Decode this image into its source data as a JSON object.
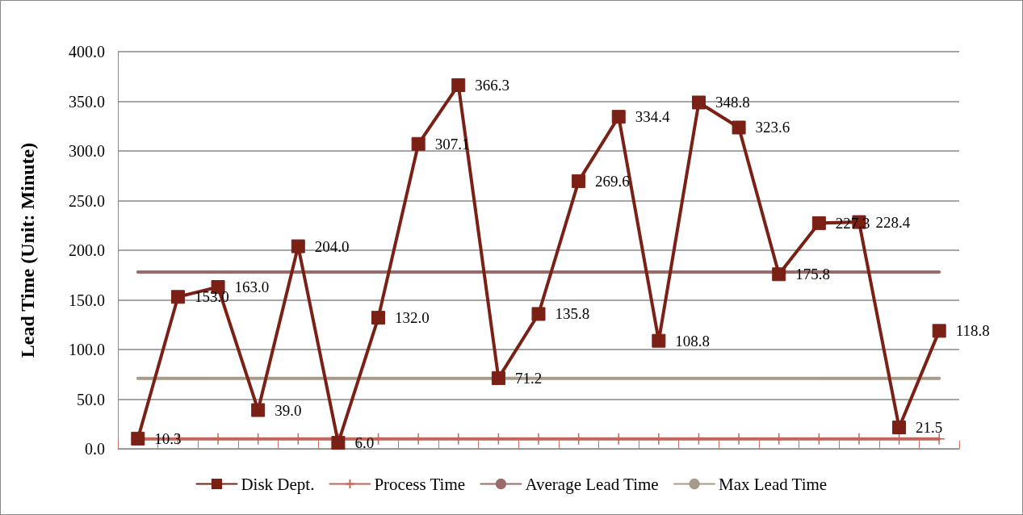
{
  "chart_data": {
    "type": "line",
    "ylabel": "Lead Time (Unit: Minute)",
    "categories": [
      null,
      null,
      null,
      null,
      null,
      null,
      null,
      null,
      null,
      null,
      null,
      null,
      null,
      null,
      null,
      null,
      null,
      null,
      null,
      null,
      null
    ],
    "series": [
      {
        "name": "Disk Dept.",
        "color": "#7b2015",
        "marker": "square",
        "values": [
          10.3,
          153.0,
          163.0,
          39.0,
          204.0,
          6.0,
          132.0,
          307.1,
          366.3,
          71.2,
          135.8,
          269.6,
          334.4,
          108.8,
          348.8,
          323.6,
          175.8,
          227.3,
          228.4,
          21.5,
          118.8
        ],
        "value_labels": [
          "10.3",
          "153.0",
          "163.0",
          "39.0",
          "204.0",
          "6.0",
          "132.0",
          "307.1",
          "366.3",
          "71.2",
          "135.8",
          "269.6",
          "334.4",
          "108.8",
          "348.8",
          "323.6",
          "175.8",
          "227.3",
          "228.4",
          "21.5",
          "118.8"
        ]
      },
      {
        "name": "Process Time",
        "color": "#c0675c",
        "marker": "cross",
        "values": [
          10,
          10,
          10,
          10,
          10,
          10,
          10,
          10,
          10,
          10,
          10,
          10,
          10,
          10,
          10,
          10,
          10,
          10,
          10,
          10,
          10
        ]
      },
      {
        "name": "Average Lead Time",
        "color": "#9b6b6b",
        "marker": "none",
        "values": [
          178,
          178,
          178,
          178,
          178,
          178,
          178,
          178,
          178,
          178,
          178,
          178,
          178,
          178,
          178,
          178,
          178,
          178,
          178,
          178,
          178
        ]
      },
      {
        "name": "Max Lead Time",
        "color": "#a69b88",
        "marker": "none",
        "values": [
          71,
          71,
          71,
          71,
          71,
          71,
          71,
          71,
          71,
          71,
          71,
          71,
          71,
          71,
          71,
          71,
          71,
          71,
          71,
          71,
          71
        ]
      }
    ],
    "ylim": [
      0,
      400
    ],
    "yticks": [
      {
        "value": 0,
        "label": "0.0"
      },
      {
        "value": 50,
        "label": "50.0"
      },
      {
        "value": 100,
        "label": "100.0"
      },
      {
        "value": 150,
        "label": "150.0"
      },
      {
        "value": 200,
        "label": "200.0"
      },
      {
        "value": 250,
        "label": "250.0"
      },
      {
        "value": 300,
        "label": "300.0"
      },
      {
        "value": 350,
        "label": "350.0"
      },
      {
        "value": 400,
        "label": "400.0"
      }
    ],
    "grid": "y",
    "legend": "bottom"
  }
}
